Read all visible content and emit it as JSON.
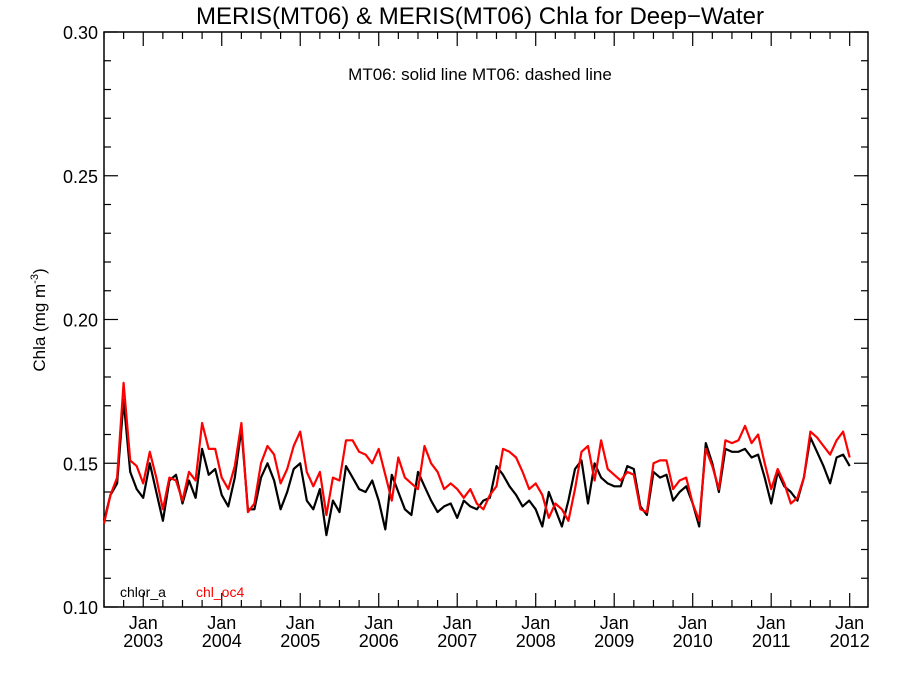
{
  "chart_data": {
    "type": "line",
    "title": "MERIS(MT06) & MERIS(MT06)  Chla for Deep−Water",
    "annotation": "MT06: solid line   MT06: dashed line",
    "xlabel": "",
    "ylabel": "Chla (mg m",
    "ylabel_sup": "-3",
    "ylabel_close": ")",
    "ylim": [
      0.1,
      0.3
    ],
    "yticks": [
      "0.10",
      "0.15",
      "0.20",
      "0.25",
      "0.30"
    ],
    "ytick_values": [
      0.1,
      0.15,
      0.2,
      0.25,
      0.3
    ],
    "yminor_step": 0.01,
    "x_start": "2002-07",
    "x_end": "2012-05",
    "xticks": [
      {
        "line1": "Jan",
        "line2": "2003",
        "month_index": 6
      },
      {
        "line1": "Jan",
        "line2": "2004",
        "month_index": 18
      },
      {
        "line1": "Jan",
        "line2": "2005",
        "month_index": 30
      },
      {
        "line1": "Jan",
        "line2": "2006",
        "month_index": 42
      },
      {
        "line1": "Jan",
        "line2": "2007",
        "month_index": 54
      },
      {
        "line1": "Jan",
        "line2": "2008",
        "month_index": 66
      },
      {
        "line1": "Jan",
        "line2": "2009",
        "month_index": 78
      },
      {
        "line1": "Jan",
        "line2": "2010",
        "month_index": 90
      },
      {
        "line1": "Jan",
        "line2": "2011",
        "month_index": 102
      },
      {
        "line1": "Jan",
        "line2": "2012",
        "month_index": 114
      }
    ],
    "x_range_months": [
      0,
      116.8
    ],
    "grid": false,
    "legend": [
      {
        "name": "chlor_a",
        "color": "#000000"
      },
      {
        "name": "chl_oc4",
        "color": "#ff0000"
      }
    ],
    "legend_position": "bottom-left",
    "series": [
      {
        "name": "chlor_a",
        "color": "#000000",
        "values": [
          0.13,
          0.139,
          0.143,
          0.172,
          0.147,
          0.141,
          0.138,
          0.15,
          0.14,
          0.13,
          0.144,
          0.146,
          0.136,
          0.144,
          0.138,
          0.155,
          0.146,
          0.148,
          0.139,
          0.135,
          0.145,
          0.162,
          0.134,
          0.134,
          0.145,
          0.15,
          0.144,
          0.134,
          0.14,
          0.148,
          0.15,
          0.137,
          0.134,
          0.141,
          0.125,
          0.137,
          0.133,
          0.149,
          0.145,
          0.141,
          0.14,
          0.144,
          0.137,
          0.127,
          0.146,
          0.14,
          0.134,
          0.132,
          0.147,
          0.142,
          0.137,
          0.133,
          0.135,
          0.136,
          0.131,
          0.137,
          0.135,
          0.134,
          0.137,
          0.138,
          0.149,
          0.146,
          0.142,
          0.139,
          0.135,
          0.137,
          0.134,
          0.128,
          0.14,
          0.134,
          0.128,
          0.137,
          0.148,
          0.151,
          0.136,
          0.15,
          0.145,
          0.143,
          0.142,
          0.142,
          0.149,
          0.148,
          0.135,
          0.132,
          0.147,
          0.145,
          0.146,
          0.137,
          0.14,
          0.142,
          0.136,
          0.128,
          0.157,
          0.15,
          0.14,
          0.155,
          0.154,
          0.154,
          0.155,
          0.152,
          0.153,
          0.145,
          0.136,
          0.147,
          0.142,
          0.14,
          0.137,
          0.145,
          0.159,
          0.154,
          0.149,
          0.143,
          0.152,
          0.153,
          0.149
        ]
      },
      {
        "name": "chl_oc4",
        "color": "#ff0000",
        "values": [
          0.129,
          0.139,
          0.145,
          0.178,
          0.151,
          0.149,
          0.143,
          0.154,
          0.145,
          0.134,
          0.145,
          0.144,
          0.137,
          0.147,
          0.144,
          0.164,
          0.155,
          0.155,
          0.145,
          0.141,
          0.149,
          0.164,
          0.133,
          0.136,
          0.15,
          0.156,
          0.153,
          0.143,
          0.148,
          0.156,
          0.161,
          0.147,
          0.142,
          0.147,
          0.132,
          0.145,
          0.144,
          0.158,
          0.158,
          0.154,
          0.153,
          0.15,
          0.155,
          0.146,
          0.137,
          0.152,
          0.145,
          0.143,
          0.141,
          0.156,
          0.15,
          0.147,
          0.141,
          0.143,
          0.141,
          0.138,
          0.141,
          0.136,
          0.134,
          0.139,
          0.142,
          0.155,
          0.154,
          0.152,
          0.147,
          0.141,
          0.143,
          0.139,
          0.131,
          0.136,
          0.134,
          0.13,
          0.141,
          0.154,
          0.156,
          0.144,
          0.158,
          0.148,
          0.146,
          0.144,
          0.147,
          0.146,
          0.134,
          0.133,
          0.15,
          0.151,
          0.151,
          0.141,
          0.144,
          0.145,
          0.136,
          0.13,
          0.155,
          0.149,
          0.141,
          0.158,
          0.157,
          0.158,
          0.163,
          0.157,
          0.16,
          0.15,
          0.141,
          0.148,
          0.143,
          0.136,
          0.138,
          0.145,
          0.161,
          0.159,
          0.156,
          0.153,
          0.158,
          0.161,
          0.152
        ]
      }
    ]
  }
}
